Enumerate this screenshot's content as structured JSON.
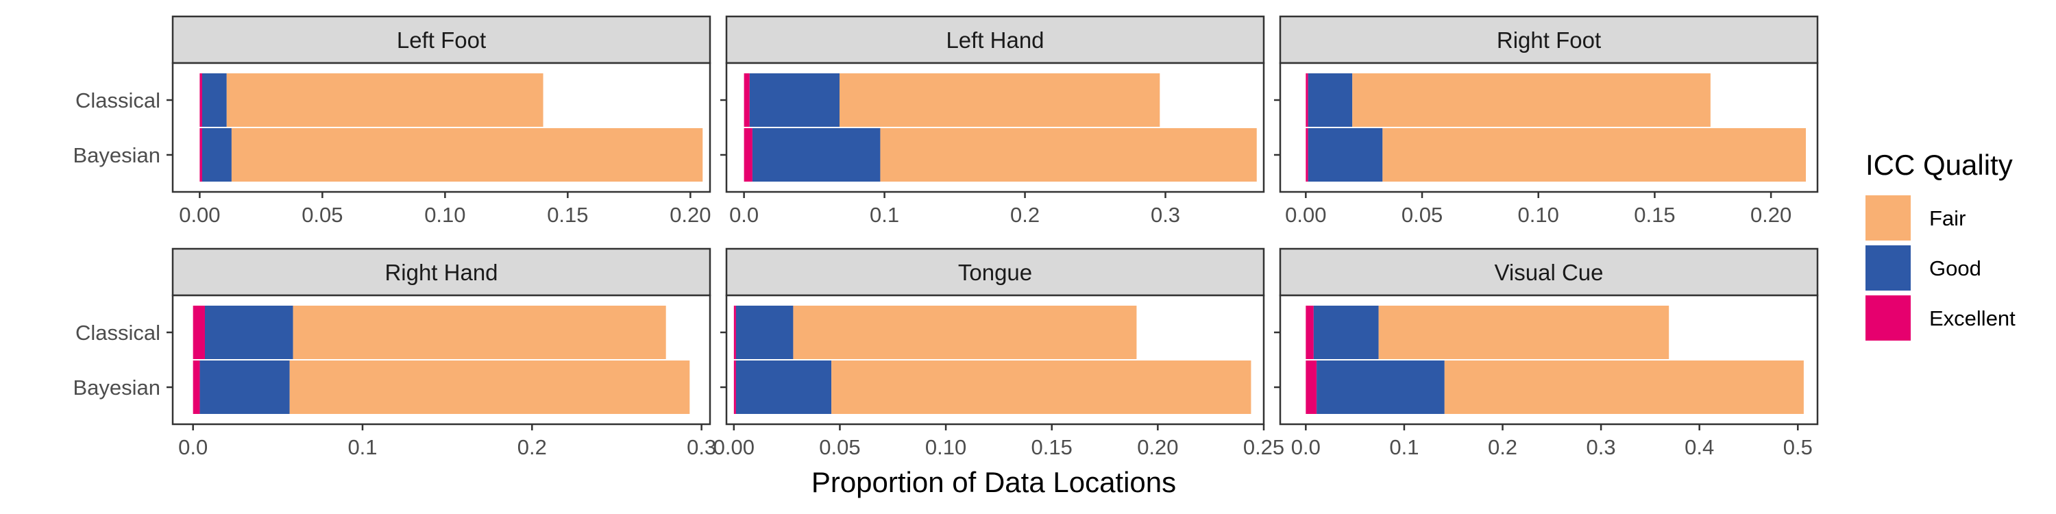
{
  "chart_data": {
    "type": "bar",
    "orientation": "horizontal",
    "stacked": true,
    "xlabel": "Proportion of Data Locations",
    "ylabel": "",
    "categories": [
      "Classical",
      "Bayesian"
    ],
    "legend": {
      "title": "ICC Quality",
      "placement": "right",
      "entries": [
        {
          "name": "Fair",
          "color": "#F9B073"
        },
        {
          "name": "Good",
          "color": "#2E59A7"
        },
        {
          "name": "Excellent",
          "color": "#E6006E"
        }
      ]
    },
    "panels": [
      {
        "title": "Left Foot",
        "xlim": [
          -0.011,
          0.208
        ],
        "xticks": [
          0.0,
          0.05,
          0.1,
          0.15,
          0.2
        ],
        "xtick_labels": [
          "0.00",
          "0.05",
          "0.10",
          "0.15",
          "0.20"
        ],
        "series": [
          {
            "name": "Excellent",
            "values": [
              0.001,
              0.001
            ]
          },
          {
            "name": "Good",
            "values": [
              0.01,
              0.012
            ]
          },
          {
            "name": "Fair",
            "values": [
              0.129,
              0.192
            ]
          }
        ]
      },
      {
        "title": "Left Hand",
        "xlim": [
          -0.0125,
          0.37
        ],
        "xticks": [
          0.0,
          0.1,
          0.2,
          0.3
        ],
        "xtick_labels": [
          "0.0",
          "0.1",
          "0.2",
          "0.3"
        ],
        "series": [
          {
            "name": "Excellent",
            "values": [
              0.004,
              0.006
            ]
          },
          {
            "name": "Good",
            "values": [
              0.064,
              0.091
            ]
          },
          {
            "name": "Fair",
            "values": [
              0.228,
              0.268
            ]
          }
        ]
      },
      {
        "title": "Right Foot",
        "xlim": [
          -0.011,
          0.22
        ],
        "xticks": [
          0.0,
          0.05,
          0.1,
          0.15,
          0.2
        ],
        "xtick_labels": [
          "0.00",
          "0.05",
          "0.10",
          "0.15",
          "0.20"
        ],
        "series": [
          {
            "name": "Excellent",
            "values": [
              0.001,
              0.001
            ]
          },
          {
            "name": "Good",
            "values": [
              0.019,
              0.032
            ]
          },
          {
            "name": "Fair",
            "values": [
              0.154,
              0.182
            ]
          }
        ]
      },
      {
        "title": "Right Hand",
        "xlim": [
          -0.012,
          0.305
        ],
        "xticks": [
          0.0,
          0.1,
          0.2,
          0.3
        ],
        "xtick_labels": [
          "0.0",
          "0.1",
          "0.2",
          "0.3"
        ],
        "series": [
          {
            "name": "Excellent",
            "values": [
              0.007,
              0.004
            ]
          },
          {
            "name": "Good",
            "values": [
              0.052,
              0.053
            ]
          },
          {
            "name": "Fair",
            "values": [
              0.22,
              0.236
            ]
          }
        ]
      },
      {
        "title": "Tongue",
        "xlim": [
          -0.0035,
          0.25
        ],
        "xticks": [
          0.0,
          0.05,
          0.1,
          0.15,
          0.2,
          0.25
        ],
        "xtick_labels": [
          "0.00",
          "0.05",
          "0.10",
          "0.15",
          "0.20",
          "0.25"
        ],
        "series": [
          {
            "name": "Excellent",
            "values": [
              0.001,
              0.001
            ]
          },
          {
            "name": "Good",
            "values": [
              0.027,
              0.045
            ]
          },
          {
            "name": "Fair",
            "values": [
              0.162,
              0.198
            ]
          }
        ]
      },
      {
        "title": "Visual Cue",
        "xlim": [
          -0.026,
          0.52
        ],
        "xticks": [
          0.0,
          0.1,
          0.2,
          0.3,
          0.4,
          0.5
        ],
        "xtick_labels": [
          "0.0",
          "0.1",
          "0.2",
          "0.3",
          "0.4",
          "0.5"
        ],
        "series": [
          {
            "name": "Excellent",
            "values": [
              0.008,
              0.011
            ]
          },
          {
            "name": "Good",
            "values": [
              0.066,
              0.13
            ]
          },
          {
            "name": "Fair",
            "values": [
              0.295,
              0.365
            ]
          }
        ]
      }
    ]
  }
}
